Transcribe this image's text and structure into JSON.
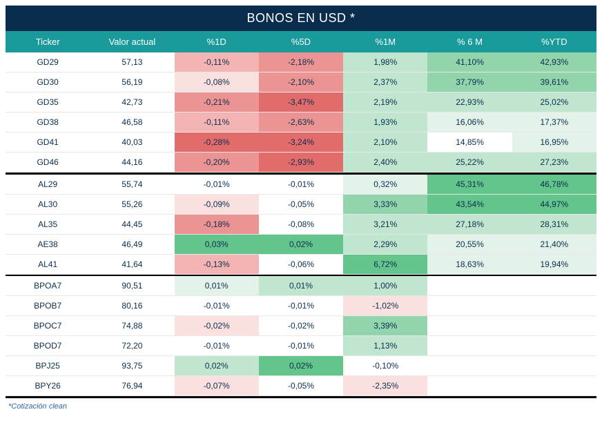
{
  "title": "BONOS EN USD *",
  "footnote": "*Cotización clean",
  "columns": [
    "Ticker",
    "Valor actual",
    "%1D",
    "%5D",
    "%1M",
    "% 6 M",
    "%YTD"
  ],
  "header_bg": "#1a9a9a",
  "title_bg": "#0a2d4d",
  "text_color": "#0a2d4d",
  "heat_colors": {
    "neg4": "#e26b6b",
    "neg3": "#ec9393",
    "neg2": "#f4b4b4",
    "neg1": "#fbe0e0",
    "zero": "#ffffff",
    "pos1": "#e4f3e9",
    "pos2": "#c1e6d0",
    "pos3": "#92d5ad",
    "pos4": "#63c58b"
  },
  "groups": [
    {
      "rows": [
        {
          "ticker": "GD29",
          "valor": "57,13",
          "cells": [
            {
              "v": "-0,11%",
              "c": "neg2"
            },
            {
              "v": "-2,18%",
              "c": "neg3"
            },
            {
              "v": "1,98%",
              "c": "pos2"
            },
            {
              "v": "41,10%",
              "c": "pos3"
            },
            {
              "v": "42,93%",
              "c": "pos3"
            }
          ]
        },
        {
          "ticker": "GD30",
          "valor": "56,19",
          "cells": [
            {
              "v": "-0,08%",
              "c": "neg1"
            },
            {
              "v": "-2,10%",
              "c": "neg3"
            },
            {
              "v": "2,37%",
              "c": "pos2"
            },
            {
              "v": "37,79%",
              "c": "pos3"
            },
            {
              "v": "39,61%",
              "c": "pos3"
            }
          ]
        },
        {
          "ticker": "GD35",
          "valor": "42,73",
          "cells": [
            {
              "v": "-0,21%",
              "c": "neg3"
            },
            {
              "v": "-3,47%",
              "c": "neg4"
            },
            {
              "v": "2,19%",
              "c": "pos2"
            },
            {
              "v": "22,93%",
              "c": "pos2"
            },
            {
              "v": "25,02%",
              "c": "pos2"
            }
          ]
        },
        {
          "ticker": "GD38",
          "valor": "46,58",
          "cells": [
            {
              "v": "-0,11%",
              "c": "neg2"
            },
            {
              "v": "-2,63%",
              "c": "neg3"
            },
            {
              "v": "1,93%",
              "c": "pos2"
            },
            {
              "v": "16,06%",
              "c": "pos1"
            },
            {
              "v": "17,37%",
              "c": "pos1"
            }
          ]
        },
        {
          "ticker": "GD41",
          "valor": "40,03",
          "cells": [
            {
              "v": "-0,28%",
              "c": "neg4"
            },
            {
              "v": "-3,24%",
              "c": "neg4"
            },
            {
              "v": "2,10%",
              "c": "pos2"
            },
            {
              "v": "14,85%",
              "c": "zero"
            },
            {
              "v": "16,95%",
              "c": "pos1"
            }
          ]
        },
        {
          "ticker": "GD46",
          "valor": "44,16",
          "cells": [
            {
              "v": "-0,20%",
              "c": "neg3"
            },
            {
              "v": "-2,93%",
              "c": "neg4"
            },
            {
              "v": "2,40%",
              "c": "pos2"
            },
            {
              "v": "25,22%",
              "c": "pos2"
            },
            {
              "v": "27,23%",
              "c": "pos2"
            }
          ]
        }
      ]
    },
    {
      "rows": [
        {
          "ticker": "AL29",
          "valor": "55,74",
          "cells": [
            {
              "v": "-0,01%",
              "c": "zero"
            },
            {
              "v": "-0,01%",
              "c": "zero"
            },
            {
              "v": "0,32%",
              "c": "pos1"
            },
            {
              "v": "45,31%",
              "c": "pos4"
            },
            {
              "v": "46,78%",
              "c": "pos4"
            }
          ]
        },
        {
          "ticker": "AL30",
          "valor": "55,26",
          "cells": [
            {
              "v": "-0,09%",
              "c": "neg1"
            },
            {
              "v": "-0,05%",
              "c": "zero"
            },
            {
              "v": "3,33%",
              "c": "pos3"
            },
            {
              "v": "43,54%",
              "c": "pos4"
            },
            {
              "v": "44,97%",
              "c": "pos4"
            }
          ]
        },
        {
          "ticker": "AL35",
          "valor": "44,45",
          "cells": [
            {
              "v": "-0,18%",
              "c": "neg3"
            },
            {
              "v": "-0,08%",
              "c": "zero"
            },
            {
              "v": "3,21%",
              "c": "pos2"
            },
            {
              "v": "27,18%",
              "c": "pos2"
            },
            {
              "v": "28,31%",
              "c": "pos2"
            }
          ]
        },
        {
          "ticker": "AE38",
          "valor": "46,49",
          "cells": [
            {
              "v": "0,03%",
              "c": "pos4"
            },
            {
              "v": "0,02%",
              "c": "pos4"
            },
            {
              "v": "2,29%",
              "c": "pos2"
            },
            {
              "v": "20,55%",
              "c": "pos1"
            },
            {
              "v": "21,40%",
              "c": "pos1"
            }
          ]
        },
        {
          "ticker": "AL41",
          "valor": "41,64",
          "cells": [
            {
              "v": "-0,13%",
              "c": "neg2"
            },
            {
              "v": "-0,06%",
              "c": "zero"
            },
            {
              "v": "6,72%",
              "c": "pos4"
            },
            {
              "v": "18,63%",
              "c": "pos1"
            },
            {
              "v": "19,94%",
              "c": "pos1"
            }
          ]
        }
      ]
    },
    {
      "rows": [
        {
          "ticker": "BPOA7",
          "valor": "90,51",
          "cells": [
            {
              "v": "0,01%",
              "c": "pos1"
            },
            {
              "v": "0,01%",
              "c": "pos2"
            },
            {
              "v": "1,00%",
              "c": "pos2"
            },
            {
              "v": "",
              "c": "zero"
            },
            {
              "v": "",
              "c": "zero"
            }
          ]
        },
        {
          "ticker": "BPOB7",
          "valor": "80,16",
          "cells": [
            {
              "v": "-0,01%",
              "c": "zero"
            },
            {
              "v": "-0,01%",
              "c": "zero"
            },
            {
              "v": "-1,02%",
              "c": "neg1"
            },
            {
              "v": "",
              "c": "zero"
            },
            {
              "v": "",
              "c": "zero"
            }
          ]
        },
        {
          "ticker": "BPOC7",
          "valor": "74,88",
          "cells": [
            {
              "v": "-0,02%",
              "c": "neg1"
            },
            {
              "v": "-0,02%",
              "c": "zero"
            },
            {
              "v": "3,39%",
              "c": "pos3"
            },
            {
              "v": "",
              "c": "zero"
            },
            {
              "v": "",
              "c": "zero"
            }
          ]
        },
        {
          "ticker": "BPOD7",
          "valor": "72,20",
          "cells": [
            {
              "v": "-0,01%",
              "c": "zero"
            },
            {
              "v": "-0,01%",
              "c": "zero"
            },
            {
              "v": "1,13%",
              "c": "pos2"
            },
            {
              "v": "",
              "c": "zero"
            },
            {
              "v": "",
              "c": "zero"
            }
          ]
        },
        {
          "ticker": "BPJ25",
          "valor": "93,75",
          "cells": [
            {
              "v": "0,02%",
              "c": "pos2"
            },
            {
              "v": "0,02%",
              "c": "pos4"
            },
            {
              "v": "-0,10%",
              "c": "zero"
            },
            {
              "v": "",
              "c": "zero"
            },
            {
              "v": "",
              "c": "zero"
            }
          ]
        },
        {
          "ticker": "BPY26",
          "valor": "76,94",
          "cells": [
            {
              "v": "-0,07%",
              "c": "neg1"
            },
            {
              "v": "-0,05%",
              "c": "zero"
            },
            {
              "v": "-2,35%",
              "c": "neg1"
            },
            {
              "v": "",
              "c": "zero"
            },
            {
              "v": "",
              "c": "zero"
            }
          ]
        }
      ]
    }
  ]
}
